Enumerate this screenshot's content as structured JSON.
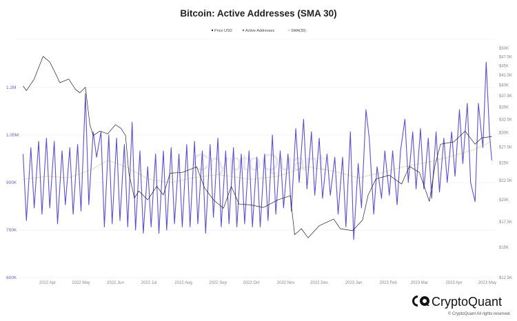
{
  "chart_data": {
    "type": "line",
    "title": "Bitcoin: Active Addresses (SMA 30)",
    "legend": {
      "placement": "top-center",
      "entries": [
        "Price USD",
        "Active Addresses",
        "SMA(30)"
      ]
    },
    "grid": true,
    "colors": {
      "Price USD": "#222222",
      "Active Addresses": "#5a4fcf",
      "SMA(30)": "#f0d37c"
    },
    "left_axis": {
      "scale": "linear",
      "unit": "addresses (thousands)",
      "ylim": [
        600,
        1350
      ],
      "ticks": [
        {
          "v": 600,
          "label": "600K"
        },
        {
          "v": 750,
          "label": "750K"
        },
        {
          "v": 900,
          "label": "900K"
        },
        {
          "v": 1050,
          "label": "1.05M"
        },
        {
          "v": 1200,
          "label": "1.2M"
        }
      ]
    },
    "right_axis": {
      "scale": "log",
      "unit": "USD (thousands)",
      "ylim": [
        12.5,
        50
      ],
      "ticks": [
        {
          "v": 12.5,
          "label": "$12.5K"
        },
        {
          "v": 15,
          "label": "$15K"
        },
        {
          "v": 17.5,
          "label": "$17.5K"
        },
        {
          "v": 20,
          "label": "$20K"
        },
        {
          "v": 22.5,
          "label": "$22.5K"
        },
        {
          "v": 25,
          "label": "$25K"
        },
        {
          "v": 27.5,
          "label": "$27.5K"
        },
        {
          "v": 30,
          "label": "$30K"
        },
        {
          "v": 32.5,
          "label": "$32.5K"
        },
        {
          "v": 35,
          "label": "$35K"
        },
        {
          "v": 37.5,
          "label": "$37.5K"
        },
        {
          "v": 40,
          "label": "$40K"
        },
        {
          "v": 42.5,
          "label": "$42.5K"
        },
        {
          "v": 45,
          "label": "$45K"
        },
        {
          "v": 47.5,
          "label": "$47.5K"
        },
        {
          "v": 50,
          "label": "$50K"
        }
      ]
    },
    "x_ticks": [
      {
        "d": "2022-04-01",
        "label": "2022 Apr"
      },
      {
        "d": "2022-05-01",
        "label": "2022 May"
      },
      {
        "d": "2022-06-01",
        "label": "2022 Jun"
      },
      {
        "d": "2022-07-01",
        "label": "2022 Jul"
      },
      {
        "d": "2022-08-01",
        "label": "2022 Aug"
      },
      {
        "d": "2022-09-01",
        "label": "2022 Sep"
      },
      {
        "d": "2022-10-01",
        "label": "2022 Oct"
      },
      {
        "d": "2022-11-01",
        "label": "2022 Nov"
      },
      {
        "d": "2022-12-01",
        "label": "2022 Dec"
      },
      {
        "d": "2023-01-01",
        "label": "2023 Jan"
      },
      {
        "d": "2023-02-01",
        "label": "2023 Feb"
      },
      {
        "d": "2023-03-01",
        "label": "2023 Mar"
      },
      {
        "d": "2023-04-01",
        "label": "2023 Apr"
      },
      {
        "d": "2023-05-01",
        "label": "2023 May"
      }
    ],
    "series": [
      {
        "name": "Price USD",
        "axis": "right",
        "points": [
          [
            "2022-03-10",
            39.8
          ],
          [
            "2022-03-13",
            38.7
          ],
          [
            "2022-03-20",
            41.5
          ],
          [
            "2022-03-28",
            47.6
          ],
          [
            "2022-04-03",
            46.0
          ],
          [
            "2022-04-08",
            43.0
          ],
          [
            "2022-04-12",
            40.6
          ],
          [
            "2022-04-20",
            41.5
          ],
          [
            "2022-04-26",
            39.0
          ],
          [
            "2022-04-30",
            38.2
          ],
          [
            "2022-05-05",
            39.5
          ],
          [
            "2022-05-09",
            31.5
          ],
          [
            "2022-05-12",
            29.5
          ],
          [
            "2022-05-18",
            30.3
          ],
          [
            "2022-05-25",
            29.8
          ],
          [
            "2022-06-01",
            31.5
          ],
          [
            "2022-06-06",
            30.8
          ],
          [
            "2022-06-10",
            29.5
          ],
          [
            "2022-06-13",
            23.5
          ],
          [
            "2022-06-18",
            20.2
          ],
          [
            "2022-06-22",
            21.1
          ],
          [
            "2022-06-30",
            20.0
          ],
          [
            "2022-07-08",
            21.7
          ],
          [
            "2022-07-14",
            20.6
          ],
          [
            "2022-07-20",
            23.5
          ],
          [
            "2022-07-31",
            23.6
          ],
          [
            "2022-08-13",
            24.4
          ],
          [
            "2022-08-20",
            21.5
          ],
          [
            "2022-08-28",
            20.0
          ],
          [
            "2022-09-06",
            19.0
          ],
          [
            "2022-09-13",
            21.7
          ],
          [
            "2022-09-20",
            19.5
          ],
          [
            "2022-09-30",
            19.4
          ],
          [
            "2022-10-12",
            19.1
          ],
          [
            "2022-10-25",
            20.0
          ],
          [
            "2022-11-05",
            20.5
          ],
          [
            "2022-11-09",
            16.2
          ],
          [
            "2022-11-15",
            16.8
          ],
          [
            "2022-11-21",
            15.9
          ],
          [
            "2022-12-01",
            17.1
          ],
          [
            "2022-12-14",
            17.8
          ],
          [
            "2022-12-20",
            16.8
          ],
          [
            "2022-12-31",
            16.6
          ],
          [
            "2023-01-09",
            17.7
          ],
          [
            "2023-01-14",
            20.6
          ],
          [
            "2023-01-21",
            22.7
          ],
          [
            "2023-02-02",
            23.2
          ],
          [
            "2023-02-13",
            22.0
          ],
          [
            "2023-02-20",
            24.5
          ],
          [
            "2023-03-01",
            23.6
          ],
          [
            "2023-03-10",
            19.8
          ],
          [
            "2023-03-15",
            24.6
          ],
          [
            "2023-03-20",
            28.0
          ],
          [
            "2023-04-01",
            28.4
          ],
          [
            "2023-04-11",
            30.3
          ],
          [
            "2023-04-20",
            28.0
          ],
          [
            "2023-04-26",
            29.1
          ],
          [
            "2023-05-05",
            29.3
          ]
        ]
      },
      {
        "name": "Active Addresses",
        "axis": "left",
        "points": [
          [
            "2022-03-10",
            990
          ],
          [
            "2022-03-13",
            780
          ],
          [
            "2022-03-17",
            1010
          ],
          [
            "2022-03-20",
            820
          ],
          [
            "2022-03-24",
            1030
          ],
          [
            "2022-03-27",
            800
          ],
          [
            "2022-03-31",
            1040
          ],
          [
            "2022-04-03",
            820
          ],
          [
            "2022-04-07",
            1030
          ],
          [
            "2022-04-10",
            770
          ],
          [
            "2022-04-14",
            1000
          ],
          [
            "2022-04-17",
            830
          ],
          [
            "2022-04-21",
            1010
          ],
          [
            "2022-04-24",
            800
          ],
          [
            "2022-04-28",
            1020
          ],
          [
            "2022-05-01",
            810
          ],
          [
            "2022-05-05",
            1180
          ],
          [
            "2022-05-08",
            830
          ],
          [
            "2022-05-12",
            1060
          ],
          [
            "2022-05-15",
            980
          ],
          [
            "2022-05-19",
            1060
          ],
          [
            "2022-05-22",
            760
          ],
          [
            "2022-05-26",
            1050
          ],
          [
            "2022-05-29",
            770
          ],
          [
            "2022-06-02",
            1040
          ],
          [
            "2022-06-05",
            780
          ],
          [
            "2022-06-09",
            1020
          ],
          [
            "2022-06-12",
            760
          ],
          [
            "2022-06-16",
            1090
          ],
          [
            "2022-06-19",
            750
          ],
          [
            "2022-06-23",
            1000
          ],
          [
            "2022-06-26",
            740
          ],
          [
            "2022-06-30",
            950
          ],
          [
            "2022-07-03",
            760
          ],
          [
            "2022-07-07",
            990
          ],
          [
            "2022-07-10",
            740
          ],
          [
            "2022-07-14",
            1000
          ],
          [
            "2022-07-17",
            750
          ],
          [
            "2022-07-21",
            1010
          ],
          [
            "2022-07-24",
            770
          ],
          [
            "2022-07-28",
            990
          ],
          [
            "2022-07-31",
            760
          ],
          [
            "2022-08-04",
            1020
          ],
          [
            "2022-08-07",
            760
          ],
          [
            "2022-08-11",
            1030
          ],
          [
            "2022-08-14",
            770
          ],
          [
            "2022-08-18",
            1000
          ],
          [
            "2022-08-21",
            740
          ],
          [
            "2022-08-25",
            1020
          ],
          [
            "2022-08-28",
            790
          ],
          [
            "2022-09-01",
            1040
          ],
          [
            "2022-09-04",
            760
          ],
          [
            "2022-09-08",
            1000
          ],
          [
            "2022-09-11",
            770
          ],
          [
            "2022-09-15",
            1010
          ],
          [
            "2022-09-18",
            760
          ],
          [
            "2022-09-22",
            990
          ],
          [
            "2022-09-25",
            770
          ],
          [
            "2022-09-29",
            1000
          ],
          [
            "2022-10-02",
            760
          ],
          [
            "2022-10-06",
            980
          ],
          [
            "2022-10-09",
            760
          ],
          [
            "2022-10-13",
            990
          ],
          [
            "2022-10-16",
            780
          ],
          [
            "2022-10-20",
            1050
          ],
          [
            "2022-10-23",
            800
          ],
          [
            "2022-10-27",
            1000
          ],
          [
            "2022-10-30",
            820
          ],
          [
            "2022-11-03",
            990
          ],
          [
            "2022-11-06",
            810
          ],
          [
            "2022-11-10",
            1070
          ],
          [
            "2022-11-13",
            900
          ],
          [
            "2022-11-17",
            1100
          ],
          [
            "2022-11-20",
            880
          ],
          [
            "2022-11-24",
            1060
          ],
          [
            "2022-11-27",
            860
          ],
          [
            "2022-12-01",
            1040
          ],
          [
            "2022-12-04",
            850
          ],
          [
            "2022-12-08",
            990
          ],
          [
            "2022-12-11",
            860
          ],
          [
            "2022-12-15",
            980
          ],
          [
            "2022-12-18",
            800
          ],
          [
            "2022-12-22",
            980
          ],
          [
            "2022-12-25",
            760
          ],
          [
            "2022-12-29",
            1060
          ],
          [
            "2023-01-01",
            720
          ],
          [
            "2023-01-05",
            960
          ],
          [
            "2023-01-08",
            820
          ],
          [
            "2023-01-12",
            1130
          ],
          [
            "2023-01-15",
            1040
          ],
          [
            "2023-01-19",
            800
          ],
          [
            "2023-01-22",
            950
          ],
          [
            "2023-01-26",
            850
          ],
          [
            "2023-01-29",
            1000
          ],
          [
            "2023-02-02",
            860
          ],
          [
            "2023-02-05",
            1000
          ],
          [
            "2023-02-09",
            830
          ],
          [
            "2023-02-12",
            1000
          ],
          [
            "2023-02-16",
            1100
          ],
          [
            "2023-02-19",
            900
          ],
          [
            "2023-02-23",
            1060
          ],
          [
            "2023-02-26",
            880
          ],
          [
            "2023-03-02",
            1070
          ],
          [
            "2023-03-05",
            880
          ],
          [
            "2023-03-09",
            1040
          ],
          [
            "2023-03-12",
            850
          ],
          [
            "2023-03-16",
            1060
          ],
          [
            "2023-03-19",
            870
          ],
          [
            "2023-03-23",
            1040
          ],
          [
            "2023-03-26",
            900
          ],
          [
            "2023-03-30",
            1060
          ],
          [
            "2023-04-02",
            920
          ],
          [
            "2023-04-06",
            1130
          ],
          [
            "2023-04-09",
            960
          ],
          [
            "2023-04-13",
            1150
          ],
          [
            "2023-04-16",
            900
          ],
          [
            "2023-04-20",
            840
          ],
          [
            "2023-04-23",
            1150
          ],
          [
            "2023-04-27",
            1010
          ],
          [
            "2023-04-30",
            1280
          ],
          [
            "2023-05-03",
            1050
          ],
          [
            "2023-05-05",
            970
          ]
        ]
      },
      {
        "name": "SMA(30)",
        "axis": "left",
        "points": [
          [
            "2022-03-10",
            910
          ],
          [
            "2022-04-01",
            920
          ],
          [
            "2022-04-20",
            915
          ],
          [
            "2022-05-10",
            940
          ],
          [
            "2022-05-25",
            970
          ],
          [
            "2022-06-10",
            950
          ],
          [
            "2022-07-01",
            910
          ],
          [
            "2022-07-20",
            900
          ],
          [
            "2022-08-10",
            915
          ],
          [
            "2022-09-01",
            925
          ],
          [
            "2022-10-01",
            910
          ],
          [
            "2022-10-25",
            920
          ],
          [
            "2022-11-20",
            950
          ],
          [
            "2022-12-15",
            935
          ],
          [
            "2023-01-05",
            915
          ],
          [
            "2023-01-25",
            930
          ],
          [
            "2023-02-15",
            950
          ],
          [
            "2023-03-10",
            965
          ],
          [
            "2023-04-01",
            985
          ],
          [
            "2023-04-20",
            1005
          ],
          [
            "2023-05-05",
            1030
          ]
        ]
      }
    ]
  },
  "watermark": "CryptoQuant",
  "footer": {
    "brand": "CryptoQuant",
    "copyright": "© CryptoQuant All rights reserved."
  }
}
